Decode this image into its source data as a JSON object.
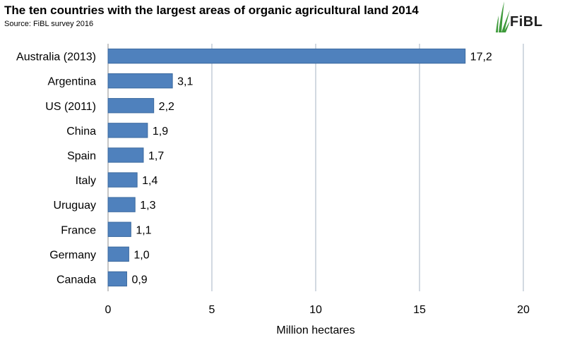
{
  "chart_data": {
    "type": "bar",
    "orientation": "horizontal",
    "title": "The ten countries with the largest areas of organic agricultural land 2014",
    "subtitle": "Source: FiBL survey 2016",
    "xlabel": "Million hectares",
    "ylabel": "",
    "xlim": [
      0,
      20
    ],
    "x_ticks": [
      0,
      5,
      10,
      15,
      20
    ],
    "grid": "vertical",
    "bar_color": "#4f81bd",
    "categories": [
      "Australia (2013)",
      "Argentina",
      "US (2011)",
      "China",
      "Spain",
      "Italy",
      "Uruguay",
      "France",
      "Germany",
      "Canada"
    ],
    "values": [
      17.2,
      3.1,
      2.2,
      1.9,
      1.7,
      1.4,
      1.3,
      1.1,
      1.0,
      0.9
    ],
    "value_labels": [
      "17,2",
      "3,1",
      "2,2",
      "1,9",
      "1,7",
      "1,4",
      "1,3",
      "1,1",
      "1,0",
      "0,9"
    ]
  },
  "logo": {
    "text": "FiBL",
    "icon": "fibl-leaf-logo-icon",
    "color": "#3d9a3a"
  }
}
